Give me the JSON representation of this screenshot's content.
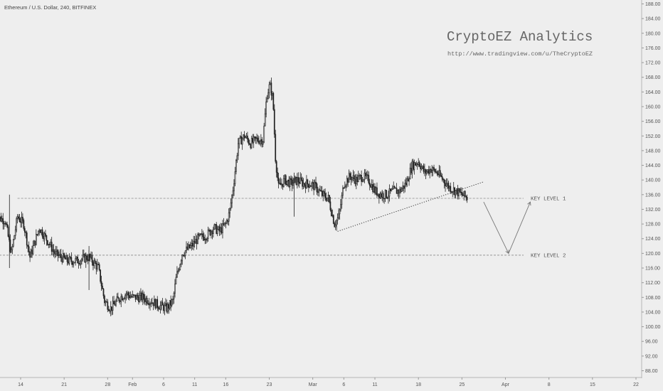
{
  "header": {
    "symbol": "Ethereum / U.S. Dollar, 240, BITFINEX"
  },
  "watermark": {
    "title": "CryptoEZ Analytics",
    "url": "http://www.tradingview.com/u/TheCryptoEZ"
  },
  "chart_data": {
    "type": "candlestick",
    "title": "Ethereum / U.S. Dollar, 240, BITFINEX",
    "ylim": [
      86,
      190
    ],
    "grid": false,
    "y_ticks": [
      88,
      92,
      96,
      100,
      104,
      108,
      112,
      116,
      120,
      124,
      128,
      132,
      136,
      140,
      144,
      148,
      152,
      156,
      160,
      164,
      168,
      172,
      176,
      180,
      184,
      188
    ],
    "x_ticks": [
      {
        "label": "14",
        "day": 14
      },
      {
        "label": "21",
        "day": 21
      },
      {
        "label": "28",
        "day": 28
      },
      {
        "label": "Feb",
        "day": 32
      },
      {
        "label": "6",
        "day": 37
      },
      {
        "label": "11",
        "day": 42
      },
      {
        "label": "16",
        "day": 47
      },
      {
        "label": "23",
        "day": 54
      },
      {
        "label": "Mar",
        "day": 61
      },
      {
        "label": "6",
        "day": 66
      },
      {
        "label": "11",
        "day": 71
      },
      {
        "label": "18",
        "day": 78
      },
      {
        "label": "25",
        "day": 85
      },
      {
        "label": "Apr",
        "day": 92
      },
      {
        "label": "8",
        "day": 99
      },
      {
        "label": "15",
        "day": 106
      },
      {
        "label": "22",
        "day": 113
      }
    ],
    "price_path": [
      [
        10,
        130
      ],
      [
        11.5,
        129
      ],
      [
        12.5,
        120
      ],
      [
        13.5,
        130
      ],
      [
        14.5,
        128
      ],
      [
        15.5,
        119
      ],
      [
        17,
        127
      ],
      [
        18.5,
        123
      ],
      [
        19.5,
        120
      ],
      [
        21.5,
        118
      ],
      [
        23,
        118
      ],
      [
        25,
        119
      ],
      [
        26.5,
        116
      ],
      [
        27.5,
        107
      ],
      [
        28.5,
        105
      ],
      [
        30,
        108
      ],
      [
        31,
        109
      ],
      [
        32,
        108
      ],
      [
        33.5,
        108
      ],
      [
        35,
        107
      ],
      [
        36,
        106
      ],
      [
        37.5,
        105
      ],
      [
        38.5,
        107
      ],
      [
        39,
        113
      ],
      [
        40,
        120
      ],
      [
        41.5,
        122
      ],
      [
        42.5,
        124
      ],
      [
        44,
        125
      ],
      [
        45,
        127
      ],
      [
        46,
        126
      ],
      [
        47,
        128
      ],
      [
        47.6,
        131
      ],
      [
        48.2,
        138
      ],
      [
        49,
        150
      ],
      [
        50,
        152
      ],
      [
        51,
        150
      ],
      [
        52,
        151
      ],
      [
        53,
        151
      ],
      [
        53.6,
        163
      ],
      [
        54.1,
        166
      ],
      [
        54.6,
        162
      ],
      [
        55,
        146
      ],
      [
        55.5,
        138
      ],
      [
        56.5,
        140
      ],
      [
        57.5,
        139
      ],
      [
        58.5,
        140
      ],
      [
        59.5,
        139
      ],
      [
        60.5,
        139
      ],
      [
        61.5,
        138
      ],
      [
        62.5,
        136
      ],
      [
        63.5,
        135
      ],
      [
        64.5,
        128
      ],
      [
        65.2,
        130
      ],
      [
        66,
        139
      ],
      [
        67,
        141
      ],
      [
        68,
        140
      ],
      [
        69,
        141
      ],
      [
        70,
        140
      ],
      [
        71,
        137
      ],
      [
        72,
        136
      ],
      [
        73,
        136
      ],
      [
        74,
        137
      ],
      [
        75,
        137
      ],
      [
        76,
        139
      ],
      [
        77,
        144
      ],
      [
        78,
        145
      ],
      [
        79,
        142
      ],
      [
        80,
        143
      ],
      [
        81,
        142
      ],
      [
        82,
        140
      ],
      [
        83,
        138
      ],
      [
        84,
        137
      ],
      [
        85,
        136
      ],
      [
        86,
        135
      ]
    ],
    "spikes": [
      {
        "day": 12.2,
        "low": 116,
        "high": 136
      },
      {
        "day": 25,
        "low": 110,
        "high": 122
      },
      {
        "day": 58,
        "low": 130,
        "high": 142
      }
    ],
    "annotations": {
      "key_levels": [
        {
          "label": "KEY LEVEL 1",
          "value": 135
        },
        {
          "label": "KEY LEVEL 2",
          "value": 119.5
        }
      ],
      "trendline": {
        "from_day": 65,
        "from_value": 126,
        "to_day": 88.5,
        "to_value": 139.5
      },
      "projection": [
        [
          88.5,
          134
        ],
        [
          92.5,
          120
        ],
        [
          96,
          134
        ]
      ]
    }
  }
}
